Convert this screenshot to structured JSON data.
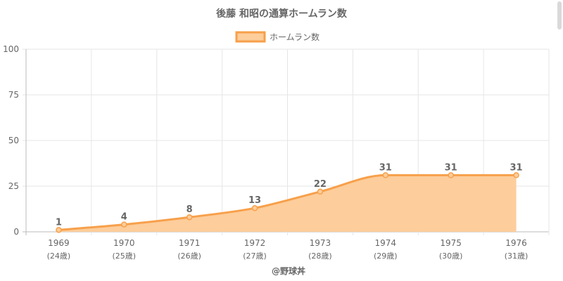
{
  "chart_data": {
    "type": "area",
    "title": "後藤 和昭の通算ホームラン数",
    "legend": {
      "label": "ホームラン数",
      "position": "top"
    },
    "categories": [
      "1969",
      "1970",
      "1971",
      "1972",
      "1973",
      "1974",
      "1975",
      "1976"
    ],
    "category_sublabels": [
      "(24歳)",
      "(25歳)",
      "(26歳)",
      "(27歳)",
      "(28歳)",
      "(29歳)",
      "(30歳)",
      "(31歳)"
    ],
    "series": [
      {
        "name": "ホームラン数",
        "values": [
          1,
          4,
          8,
          13,
          22,
          31,
          31,
          31
        ]
      }
    ],
    "ylim": [
      0,
      100
    ],
    "yticks": [
      0,
      25,
      50,
      75,
      100
    ],
    "grid": true,
    "colors": {
      "line": "#f7a04b",
      "fill": "#fdcd9b",
      "text": "#666666",
      "grid": "#e6e6e6"
    }
  },
  "footer": {
    "credit": "@野球丼"
  }
}
